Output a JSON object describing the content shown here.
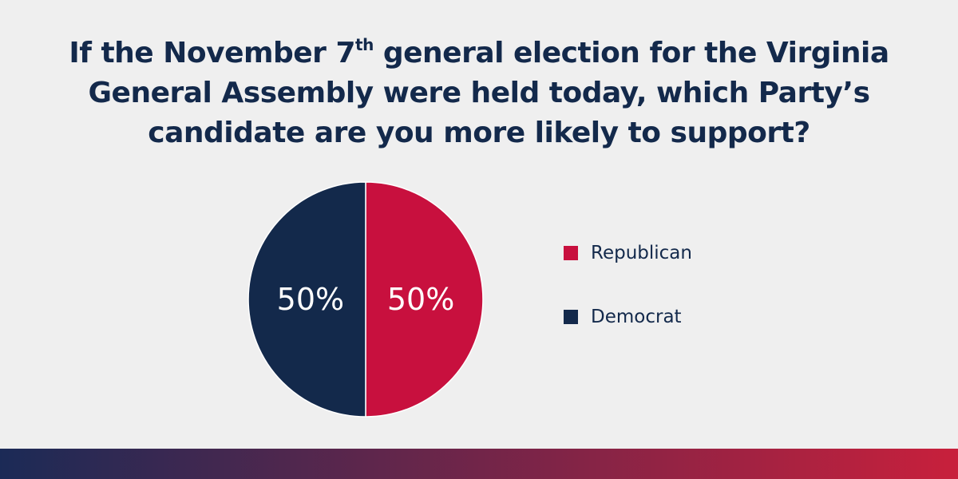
{
  "title": {
    "part1": "If the November 7",
    "superscript": "th",
    "part2": " general election for the Virginia General Assembly were held today, which Party’s candidate are you more likely to support?"
  },
  "colors": {
    "republican": "#c8103e",
    "democrat": "#13294b",
    "title": "#13294b",
    "background": "#efefef",
    "footer_gradient_start": "#1b2a56",
    "footer_gradient_end": "#c8203c"
  },
  "chart_data": {
    "type": "pie",
    "title": "If the November 7th general election for the Virginia General Assembly were held today, which Party’s candidate are you more likely to support?",
    "legend_position": "right",
    "slices": [
      {
        "name": "Republican",
        "value": 50,
        "label": "50%",
        "color": "#c8103e"
      },
      {
        "name": "Democrat",
        "value": 50,
        "label": "50%",
        "color": "#13294b"
      }
    ]
  },
  "legend": [
    {
      "label": "Republican",
      "color": "#c8103e"
    },
    {
      "label": "Democrat",
      "color": "#13294b"
    }
  ]
}
